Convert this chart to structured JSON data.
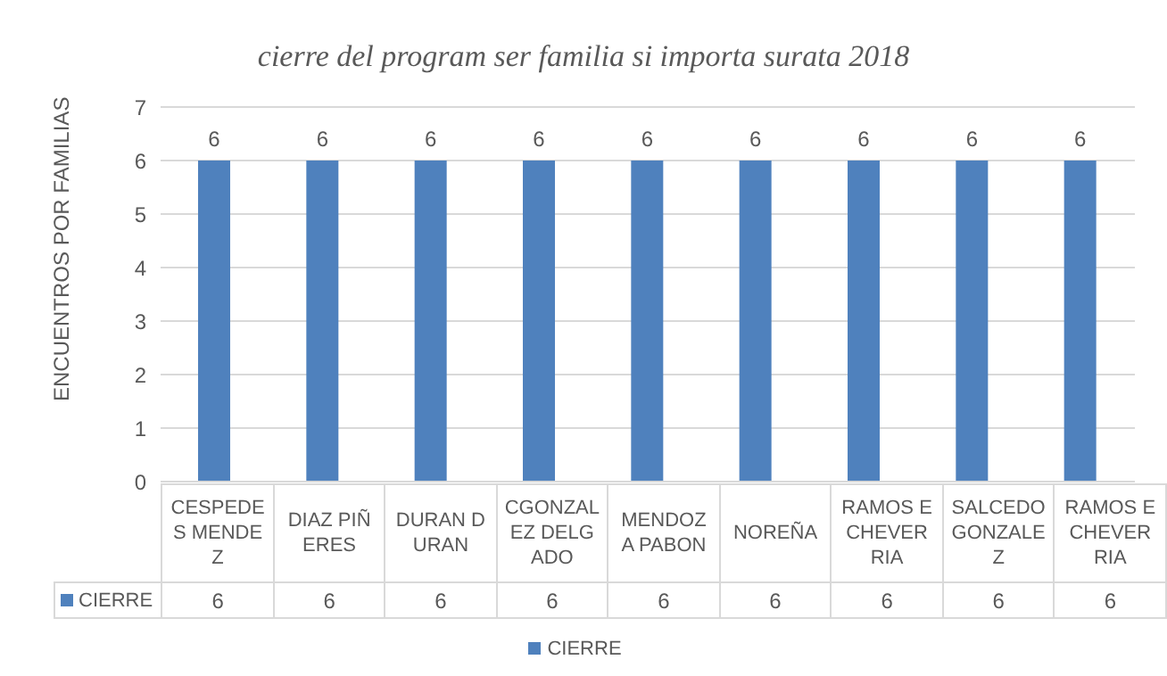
{
  "chart_data": {
    "type": "bar",
    "title": "cierre del program ser familia si importa surata 2018",
    "ylabel": "ENCUENTROS POR FAMILIAS",
    "categories": [
      "CESPEDES MENDEZ",
      "DIAZ PIÑERES",
      "DURAN DURAN",
      "CGONZALEZ DELGADO",
      "MENDOZA PABON",
      "NOREÑA",
      "RAMOS ECHEVERRIA",
      "SALCEDO GONZALEZ",
      "RAMOS ECHEVERRIA"
    ],
    "series": [
      {
        "name": "CIERRE",
        "color": "#4f81bd",
        "values": [
          6,
          6,
          6,
          6,
          6,
          6,
          6,
          6,
          6
        ]
      }
    ],
    "annotations": [
      "6",
      "6",
      "6",
      "6",
      "6",
      "6",
      "6",
      "6",
      "6"
    ],
    "ylim": [
      0,
      7
    ],
    "yticks": [
      0,
      1,
      2,
      3,
      4,
      5,
      6,
      7
    ],
    "grid": "y",
    "legend": "bottom",
    "data_labels": true
  }
}
